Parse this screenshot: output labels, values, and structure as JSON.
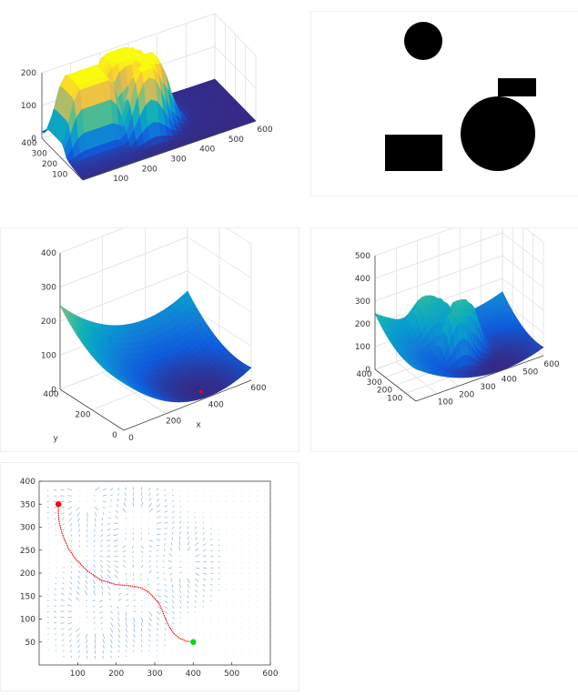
{
  "chart_data": [
    {
      "type": "surface",
      "panel": "potential-field",
      "title": "",
      "x_ticks": [
        "100",
        "200",
        "300",
        "400",
        "500",
        "600"
      ],
      "y_ticks": [
        "100",
        "200",
        "300",
        "400"
      ],
      "z_ticks": [
        "0",
        "100",
        "200"
      ],
      "xlim": [
        0,
        600
      ],
      "ylim": [
        0,
        400
      ],
      "zlim": [
        0,
        200
      ],
      "colormap": "parula"
    },
    {
      "type": "image",
      "panel": "obstacle-map",
      "title": "",
      "shapes": [
        {
          "kind": "circle",
          "label": "small-circle"
        },
        {
          "kind": "rectangle",
          "label": "small-rectangle"
        },
        {
          "kind": "rectangle",
          "label": "large-rectangle"
        },
        {
          "kind": "circle",
          "label": "large-circle"
        }
      ],
      "fill_color": "#000000"
    },
    {
      "type": "surface",
      "panel": "attractive-field",
      "title": "",
      "xlabel": "x",
      "ylabel": "y",
      "x_ticks": [
        "0",
        "200",
        "400",
        "600"
      ],
      "y_ticks": [
        "0",
        "200",
        "400"
      ],
      "z_ticks": [
        "0",
        "100",
        "200",
        "300",
        "400"
      ],
      "xlim": [
        0,
        600
      ],
      "ylim": [
        0,
        400
      ],
      "zlim": [
        0,
        400
      ],
      "goal_marker_color": "#ff0000"
    },
    {
      "type": "surface",
      "panel": "total-field",
      "title": "",
      "x_ticks": [
        "100",
        "200",
        "300",
        "400",
        "500",
        "600"
      ],
      "y_ticks": [
        "100",
        "200",
        "300",
        "400"
      ],
      "z_ticks": [
        "0",
        "100",
        "200",
        "300",
        "400",
        "500"
      ],
      "xlim": [
        0,
        600
      ],
      "ylim": [
        0,
        400
      ],
      "zlim": [
        0,
        500
      ]
    },
    {
      "type": "quiver",
      "panel": "gradient-path",
      "title": "",
      "x_ticks": [
        "100",
        "200",
        "300",
        "400",
        "500",
        "600"
      ],
      "y_ticks": [
        "50",
        "100",
        "150",
        "200",
        "250",
        "300",
        "350",
        "400"
      ],
      "xlim": [
        0,
        600
      ],
      "ylim": [
        0,
        400
      ],
      "start": {
        "x": 50,
        "y": 350,
        "color": "#ff0000"
      },
      "goal": {
        "x": 400,
        "y": 50,
        "color": "#00dd00"
      },
      "path": [
        [
          50,
          350
        ],
        [
          50,
          330
        ],
        [
          52,
          310
        ],
        [
          60,
          285
        ],
        [
          75,
          255
        ],
        [
          95,
          230
        ],
        [
          125,
          205
        ],
        [
          160,
          185
        ],
        [
          200,
          175
        ],
        [
          240,
          172
        ],
        [
          265,
          168
        ],
        [
          285,
          158
        ],
        [
          300,
          145
        ],
        [
          312,
          132
        ],
        [
          320,
          118
        ],
        [
          328,
          100
        ],
        [
          338,
          82
        ],
        [
          350,
          68
        ],
        [
          365,
          58
        ],
        [
          382,
          52
        ],
        [
          400,
          50
        ]
      ],
      "path_color": "#ff0000",
      "arrow_color": "#3f8fd2"
    }
  ]
}
